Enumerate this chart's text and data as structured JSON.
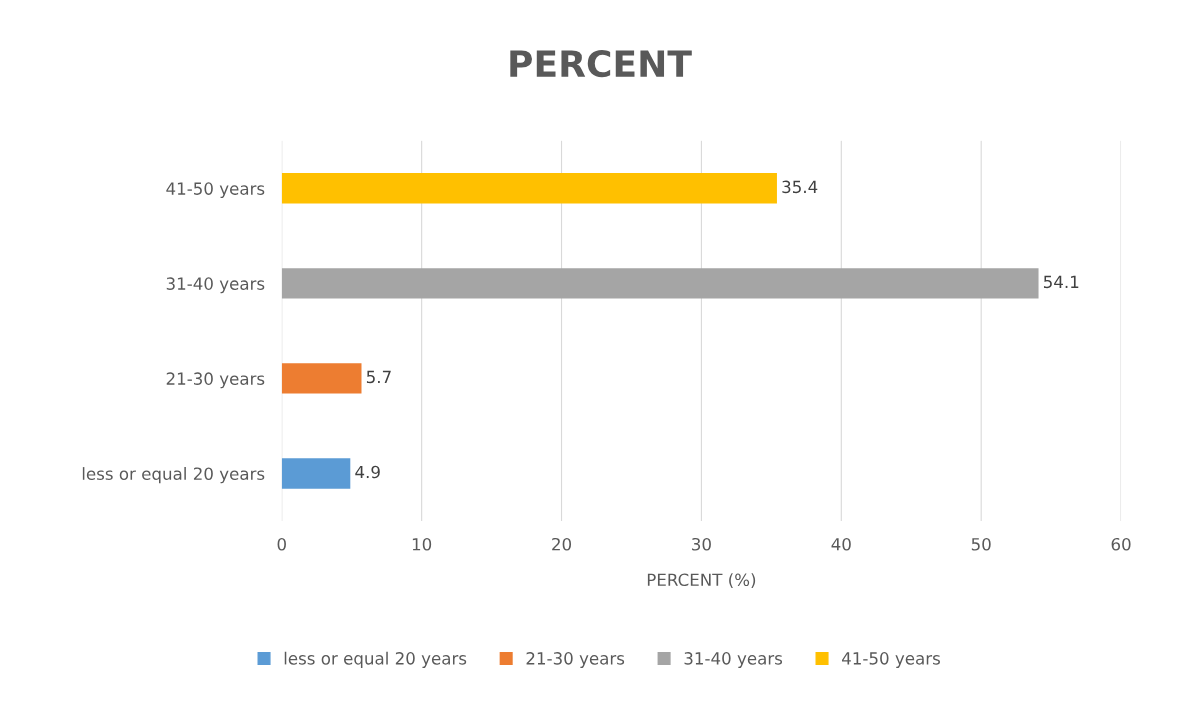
{
  "chart_data": {
    "type": "bar",
    "orientation": "horizontal",
    "title": "PERCENT",
    "xlabel": "PERCENT (%)",
    "categories": [
      "41-50 years",
      "31-40 years",
      "21-30 years",
      "less or equal 20 years"
    ],
    "series": [
      {
        "name": "less or equal 20 years",
        "color": "#5b9bd5",
        "values": [
          null,
          null,
          null,
          4.9
        ]
      },
      {
        "name": "21-30 years",
        "color": "#ed7d31",
        "values": [
          null,
          null,
          5.7,
          null
        ]
      },
      {
        "name": "31-40 years",
        "color": "#a5a5a5",
        "values": [
          null,
          54.1,
          null,
          null
        ]
      },
      {
        "name": "41-50 years",
        "color": "#ffc000",
        "values": [
          35.4,
          null,
          null,
          null
        ]
      }
    ],
    "xlim": [
      0,
      60
    ],
    "xticks": [
      0,
      10,
      20,
      30,
      40,
      50,
      60
    ],
    "grid": "x",
    "legend": "bottom",
    "data_labels": true
  }
}
